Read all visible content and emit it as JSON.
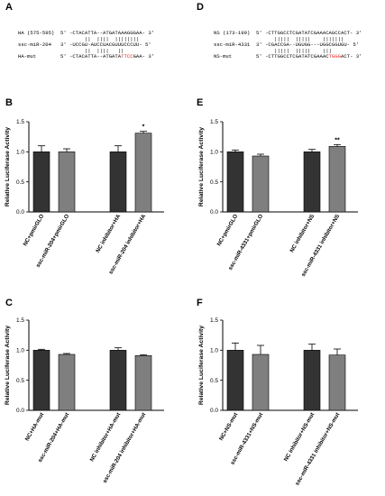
{
  "seq_panels": [
    {
      "letter": "A",
      "rows": [
        [
          {
            "t": "HA (575-595)  5' -CTACATTA--ATGATAAAGGGAA- 3'"
          }
        ],
        [
          {
            "t": "                      ||  ||||  ||||||||"
          }
        ],
        [
          {
            "t": "ssc-miR-204   3' -UCCGU-AUCCUACGUUUCCCUU- 5'"
          }
        ],
        [
          {
            "t": "                      ||  ||||   ||"
          }
        ],
        [
          {
            "t": "HA-mut        5' -CTACATTA--ATGATA"
          },
          {
            "t": "TTCC",
            "red": true
          },
          {
            "t": "GAA- 3'"
          }
        ]
      ]
    },
    {
      "letter": "D",
      "rows": [
        [
          {
            "t": "NS (173-199)  5' -CTTGGCCTCGATATCGAAACAGCCACT- 3'"
          }
        ],
        [
          {
            "t": "                    |||||  |||||    |||||||"
          }
        ],
        [
          {
            "t": "ssc-miR-4331  3' -CGACCGA--UGUGG---UGGCGGUGU- 5'"
          }
        ],
        [
          {
            "t": "                    |||||  |||||    |||"
          }
        ],
        [
          {
            "t": "NS-mut        5' -CTTGGCCTCGATATCGAAAC"
          },
          {
            "t": "TGGG",
            "red": true
          },
          {
            "t": "ACT- 3'"
          }
        ]
      ]
    }
  ],
  "chart_data": [
    {
      "letter": "B",
      "type": "bar",
      "categories": [
        "NC+pmirGLO",
        "ssc-miR-204+pmirGLO",
        "NC inhibitor+HA",
        "ssc-miR-204 inhibitor+HA"
      ],
      "values": [
        1.0,
        1.0,
        1.0,
        1.31
      ],
      "errors": [
        0.1,
        0.05,
        0.1,
        0.03
      ],
      "colors": [
        "#333333",
        "#7f7f7f",
        "#333333",
        "#7f7f7f"
      ],
      "significance": [
        "",
        "",
        "",
        "*"
      ],
      "ylabel": "Relative Luciferase Activity",
      "ylim": [
        0,
        1.5
      ],
      "yticks": [
        "0.0",
        "0.5",
        "1.0",
        "1.5"
      ]
    },
    {
      "letter": "E",
      "type": "bar",
      "categories": [
        "NC+pmirGLO",
        "ssc-miR-4331+pmirGLO",
        "NC inhibitor+NS",
        "ssc-miR-4331 inhibitor+NS"
      ],
      "values": [
        1.0,
        0.93,
        1.0,
        1.09
      ],
      "errors": [
        0.03,
        0.03,
        0.04,
        0.03
      ],
      "colors": [
        "#333333",
        "#7f7f7f",
        "#333333",
        "#7f7f7f"
      ],
      "significance": [
        "",
        "",
        "",
        "**"
      ],
      "ylabel": "Relative Luciferase Activity",
      "ylim": [
        0,
        1.5
      ],
      "yticks": [
        "0.0",
        "0.5",
        "1.0",
        "1.5"
      ]
    },
    {
      "letter": "C",
      "type": "bar",
      "categories": [
        "NC+HA-mut",
        "ssc-miR-204+HA-mut",
        "NC inhibitor+HA-mut",
        "ssc-miR-204 inhibitor+HA-mut"
      ],
      "values": [
        1.0,
        0.93,
        1.0,
        0.91
      ],
      "errors": [
        0.015,
        0.015,
        0.04,
        0.015
      ],
      "colors": [
        "#333333",
        "#7f7f7f",
        "#333333",
        "#7f7f7f"
      ],
      "significance": [
        "",
        "",
        "",
        ""
      ],
      "ylabel": "Relative Luciferase Activity",
      "ylim": [
        0,
        1.5
      ],
      "yticks": [
        "0.0",
        "0.5",
        "1.0",
        "1.5"
      ]
    },
    {
      "letter": "F",
      "type": "bar",
      "categories": [
        "NC+NS-mut",
        "ssc-miR-4331+NS-mut",
        "NC inhibitor+NS-mut",
        "ssc-miR-4331 inhibitor+NS-mut"
      ],
      "values": [
        1.0,
        0.93,
        1.0,
        0.92
      ],
      "errors": [
        0.12,
        0.15,
        0.1,
        0.1
      ],
      "colors": [
        "#333333",
        "#7f7f7f",
        "#333333",
        "#7f7f7f"
      ],
      "significance": [
        "",
        "",
        "",
        ""
      ],
      "ylabel": "Relative Luciferase Activity",
      "ylim": [
        0,
        1.5
      ],
      "yticks": [
        "0.0",
        "0.5",
        "1.0",
        "1.5"
      ]
    }
  ]
}
